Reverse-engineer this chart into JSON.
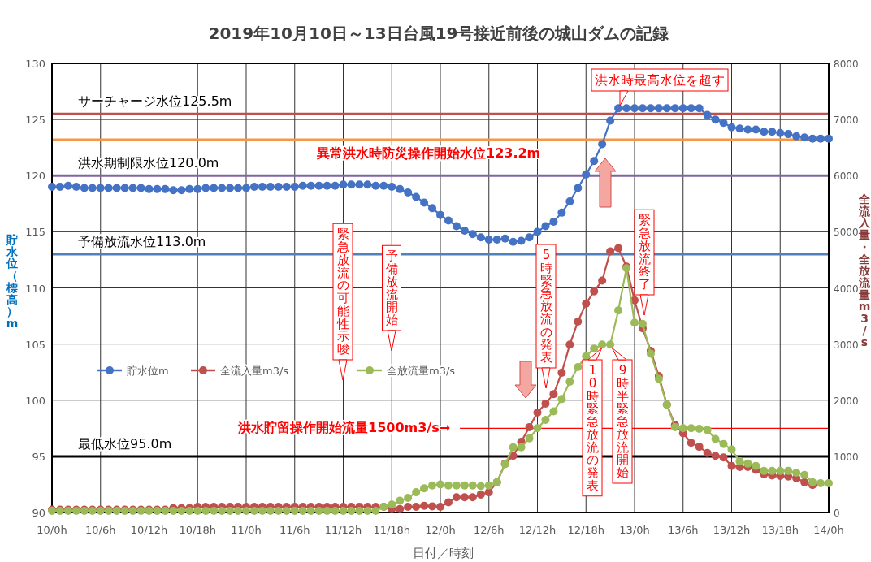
{
  "chart_data": {
    "type": "line",
    "title": "2019年10月10日～13日台風19号接近前後の城山ダムの記録",
    "xlabel": "日付／時刻",
    "ylabel": "貯水位（標高）m",
    "y2label": "全流入量・全放流量m3/s",
    "categories": [
      "10/0h",
      null,
      null,
      null,
      null,
      null,
      "10/6h",
      null,
      null,
      null,
      null,
      null,
      "10/12h",
      null,
      null,
      null,
      null,
      null,
      "10/18h",
      null,
      null,
      null,
      null,
      null,
      "11/0h",
      null,
      null,
      null,
      null,
      null,
      "11/6h",
      null,
      null,
      null,
      null,
      null,
      "11/12h",
      null,
      null,
      null,
      null,
      null,
      "11/18h",
      null,
      null,
      null,
      null,
      null,
      "12/0h",
      null,
      null,
      null,
      null,
      null,
      "12/6h",
      null,
      null,
      null,
      null,
      null,
      "12/12h",
      null,
      null,
      null,
      null,
      null,
      "12/18h",
      null,
      null,
      null,
      null,
      null,
      "13/0h",
      null,
      null,
      null,
      null,
      null,
      "13/6h",
      null,
      null,
      null,
      null,
      null,
      "13/12h",
      null,
      null,
      null,
      null,
      null,
      "13/18h",
      null,
      null,
      null,
      null,
      null,
      "14/0h"
    ],
    "series": [
      {
        "name": "貯水位m",
        "color": "#4472c4",
        "values": [
          119.0,
          119.0,
          119.1,
          119.0,
          118.9,
          118.9,
          118.9,
          118.9,
          118.9,
          118.9,
          118.9,
          118.9,
          118.8,
          118.8,
          118.8,
          118.7,
          118.7,
          118.8,
          118.8,
          118.9,
          118.9,
          118.9,
          118.9,
          118.9,
          118.9,
          119.0,
          119.0,
          119.0,
          119.0,
          119.0,
          119.0,
          119.1,
          119.1,
          119.1,
          119.1,
          119.1,
          119.2,
          119.2,
          119.2,
          119.2,
          119.1,
          119.1,
          119.0,
          118.8,
          118.5,
          118.1,
          117.6,
          117.1,
          116.5,
          116.0,
          115.5,
          115.1,
          114.8,
          114.5,
          114.3,
          114.3,
          114.4,
          114.1,
          114.2,
          114.5,
          115.0,
          115.5,
          115.9,
          116.7,
          117.7,
          118.9,
          120.1,
          121.3,
          122.8,
          124.9,
          126.0,
          126.0,
          126.0,
          126.0,
          126.0,
          126.0,
          126.0,
          126.0,
          126.0,
          126.0,
          126.0,
          125.4,
          125.0,
          124.7,
          124.3,
          124.2,
          124.1,
          124.1,
          123.9,
          123.9,
          123.8,
          123.7,
          123.5,
          123.4,
          123.3,
          123.3,
          123.3
        ]
      },
      {
        "name": "全流入量m3/s",
        "color": "#c0504d",
        "axis": "y2",
        "values": [
          50,
          50,
          50,
          50,
          50,
          50,
          50,
          50,
          50,
          50,
          50,
          50,
          50,
          50,
          50,
          80,
          80,
          80,
          100,
          100,
          100,
          100,
          100,
          100,
          100,
          100,
          100,
          100,
          100,
          100,
          100,
          100,
          100,
          100,
          100,
          100,
          100,
          100,
          100,
          100,
          100,
          100,
          60,
          60,
          100,
          100,
          120,
          110,
          100,
          180,
          270,
          270,
          270,
          320,
          360,
          540,
          870,
          1010,
          1260,
          1520,
          1780,
          1940,
          2110,
          2490,
          2990,
          3400,
          3720,
          3940,
          4130,
          4650,
          4710,
          4380,
          3780,
          3280,
          2880,
          2430,
          1920,
          1560,
          1410,
          1240,
          1170,
          1060,
          1010,
          980,
          830,
          810,
          810,
          760,
          680,
          660,
          650,
          640,
          610,
          540,
          490,
          null,
          null
        ]
      },
      {
        "name": "全放流量m3/s",
        "color": "#9bbb59",
        "axis": "y2",
        "values": [
          30,
          30,
          30,
          30,
          30,
          30,
          30,
          30,
          30,
          30,
          30,
          30,
          30,
          30,
          30,
          30,
          30,
          30,
          30,
          30,
          30,
          30,
          30,
          30,
          30,
          30,
          30,
          30,
          30,
          30,
          30,
          30,
          30,
          30,
          30,
          30,
          30,
          30,
          30,
          30,
          30,
          100,
          140,
          210,
          260,
          360,
          430,
          480,
          500,
          480,
          480,
          480,
          480,
          470,
          480,
          540,
          860,
          1160,
          1160,
          1320,
          1500,
          1650,
          1800,
          2020,
          2330,
          2590,
          2780,
          2920,
          2990,
          2990,
          3600,
          4350,
          3380,
          3360,
          2830,
          2380,
          1920,
          1520,
          1500,
          1500,
          1490,
          1470,
          1310,
          1220,
          1120,
          910,
          870,
          830,
          740,
          740,
          740,
          740,
          710,
          670,
          540,
          520,
          520
        ]
      }
    ],
    "ylim": [
      90,
      130
    ],
    "y2lim": [
      0,
      8000
    ],
    "yticks": [
      90,
      95,
      100,
      105,
      110,
      115,
      120,
      125,
      130
    ],
    "y2ticks": [
      0,
      1000,
      2000,
      3000,
      4000,
      5000,
      6000,
      7000,
      8000
    ],
    "grid": true,
    "legend": "left",
    "marker": "circle",
    "ref_lines": [
      {
        "axis": "y",
        "value": 125.5,
        "label": "サーチャージ水位125.5m",
        "color": "#c0504d"
      },
      {
        "axis": "y",
        "value": 123.2,
        "label": "異常洪水時防災操作開始水位123.2m",
        "color": "#f79646"
      },
      {
        "axis": "y",
        "value": 120.0,
        "label": "洪水期制限水位120.0m",
        "color": "#8064a2"
      },
      {
        "axis": "y",
        "value": 113.0,
        "label": "予備放流水位113.0m",
        "color": "#4f81bd"
      },
      {
        "axis": "y",
        "value": 95.0,
        "label": "最低水位95.0m",
        "color": "#000000"
      },
      {
        "axis": "y2",
        "value": 1500,
        "label": "洪水貯留操作開始流量1500m3/s→",
        "color": "#ff0000"
      }
    ],
    "annotations": [
      "緊急放流の可能性示唆",
      "予備放流開始",
      "5時緊急放流の発表",
      "洪水時最高水位を超す",
      "緊急放流終了",
      "10時緊急放流の発表",
      "9時半緊急放流開始"
    ]
  }
}
